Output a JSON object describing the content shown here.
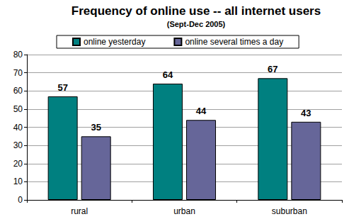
{
  "chart_data": {
    "type": "bar",
    "title": "Frequency of online use -- all internet users",
    "subtitle": "(Sept-Dec 2005)",
    "categories": [
      "rural",
      "urban",
      "suburban"
    ],
    "series": [
      {
        "name": "online yesterday",
        "color": "#008080",
        "values": [
          57,
          64,
          67
        ]
      },
      {
        "name": "online several times a day",
        "color": "#666699",
        "values": [
          35,
          44,
          43
        ]
      }
    ],
    "ylim": [
      0,
      80
    ],
    "yticks": [
      0,
      10,
      20,
      30,
      40,
      50,
      60,
      70,
      80
    ],
    "grid": true,
    "legend": "top",
    "data_labels": true
  }
}
